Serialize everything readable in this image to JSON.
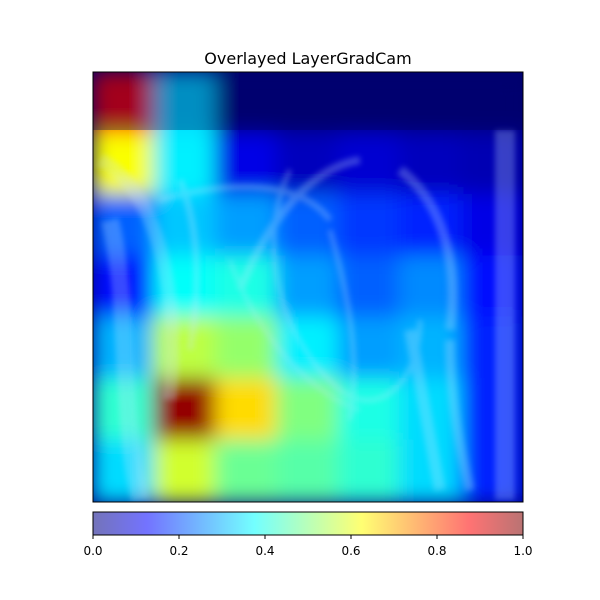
{
  "chart_data": {
    "type": "heatmap",
    "title": "Overlayed LayerGradCam",
    "xlabel": "",
    "ylabel": "",
    "grid": false,
    "colormap": "jet",
    "colorbar": {
      "orientation": "horizontal",
      "placement": "bottom",
      "range": [
        0.0,
        1.0
      ],
      "ticks": [
        0.0,
        0.2,
        0.4,
        0.6,
        0.8,
        1.0
      ],
      "tick_labels": [
        "0.0",
        "0.2",
        "0.4",
        "0.6",
        "0.8",
        "1.0"
      ]
    },
    "attribution_grid": {
      "rows": 7,
      "cols": 7,
      "values": [
        [
          0.88,
          0.34,
          0.0,
          0.0,
          0.0,
          0.0,
          0.0
        ],
        [
          0.62,
          0.36,
          0.1,
          0.06,
          0.08,
          0.06,
          0.05
        ],
        [
          0.22,
          0.32,
          0.28,
          0.22,
          0.18,
          0.16,
          0.1
        ],
        [
          0.14,
          0.38,
          0.4,
          0.28,
          0.22,
          0.26,
          0.14
        ],
        [
          0.3,
          0.56,
          0.52,
          0.36,
          0.28,
          0.3,
          0.16
        ],
        [
          0.42,
          0.98,
          0.66,
          0.5,
          0.4,
          0.34,
          0.16
        ],
        [
          0.34,
          0.58,
          0.48,
          0.46,
          0.42,
          0.34,
          0.16
        ]
      ]
    }
  }
}
